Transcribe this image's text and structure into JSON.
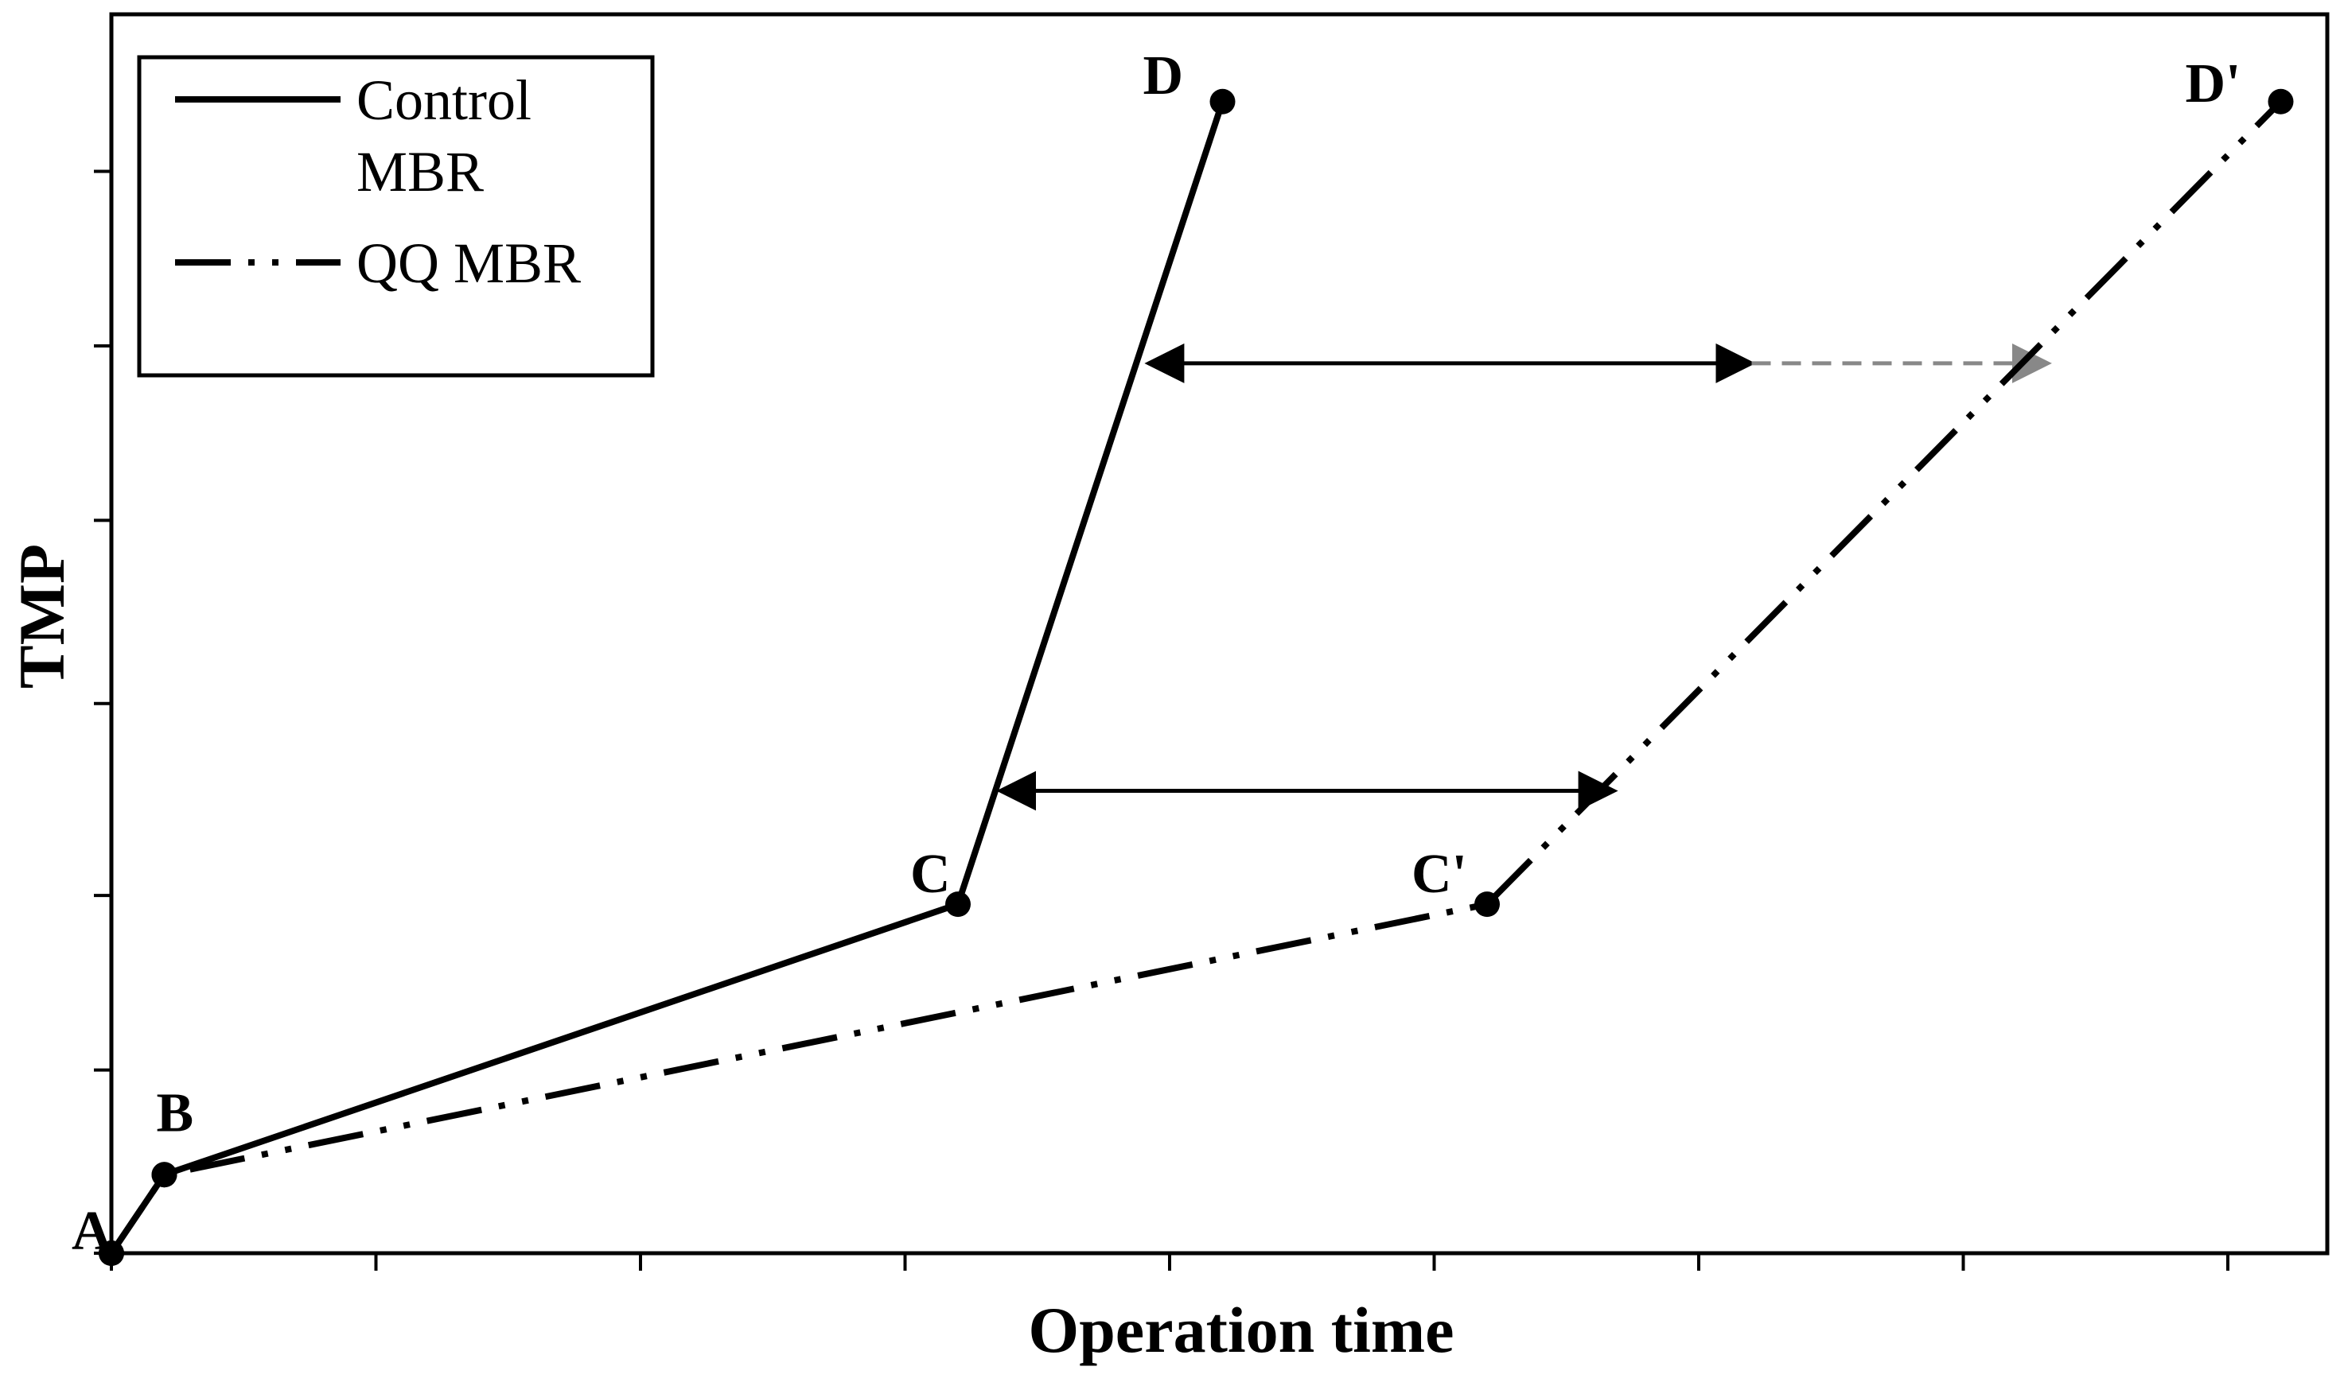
{
  "chart_data": {
    "type": "line",
    "title": "",
    "xlabel": "Operation time",
    "ylabel": "TMP",
    "xlim": [
      0,
      10
    ],
    "ylim": [
      0,
      7
    ],
    "x_ticks": [
      0,
      1.25,
      2.5,
      3.75,
      5,
      6.25,
      7.5,
      8.75,
      10
    ],
    "y_ticks": [
      0,
      1.05,
      2.05,
      3.15,
      4.2,
      5.2,
      6.2
    ],
    "grid": false,
    "legend_placement": "top-left",
    "series": [
      {
        "name": "Control MBR",
        "style": "solid",
        "color": "#000000",
        "points": [
          {
            "label": "A",
            "x": 0.0,
            "y": 0.0
          },
          {
            "label": "B",
            "x": 0.25,
            "y": 0.45
          },
          {
            "label": "C",
            "x": 4.0,
            "y": 2.0
          },
          {
            "label": "D",
            "x": 5.25,
            "y": 6.6
          }
        ]
      },
      {
        "name": "QQ MBR",
        "style": "dash-dot-dot",
        "color": "#000000",
        "points": [
          {
            "label": "A",
            "x": 0.0,
            "y": 0.0
          },
          {
            "label": "B",
            "x": 0.25,
            "y": 0.45
          },
          {
            "label": "C'",
            "x": 6.5,
            "y": 2.0
          },
          {
            "label": "D'",
            "x": 10.25,
            "y": 6.6
          }
        ]
      }
    ],
    "legend": [
      {
        "label_line1": "Control",
        "label_line2": "MBR",
        "style": "solid"
      },
      {
        "label_line1": "QQ MBR",
        "label_line2": "",
        "style": "dash-dot-dot"
      }
    ],
    "annotations": [
      {
        "type": "double-arrow",
        "x1": 4.2,
        "x2": 7.1,
        "y": 2.65,
        "color": "#000000",
        "dashed": false
      },
      {
        "type": "double-arrow",
        "x1": 4.9,
        "x2": 7.75,
        "y": 5.1,
        "color": "#000000",
        "dashed": false
      },
      {
        "type": "arrow",
        "x1": 7.75,
        "x2": 9.15,
        "y": 5.1,
        "color": "#888888",
        "dashed": true
      }
    ]
  }
}
